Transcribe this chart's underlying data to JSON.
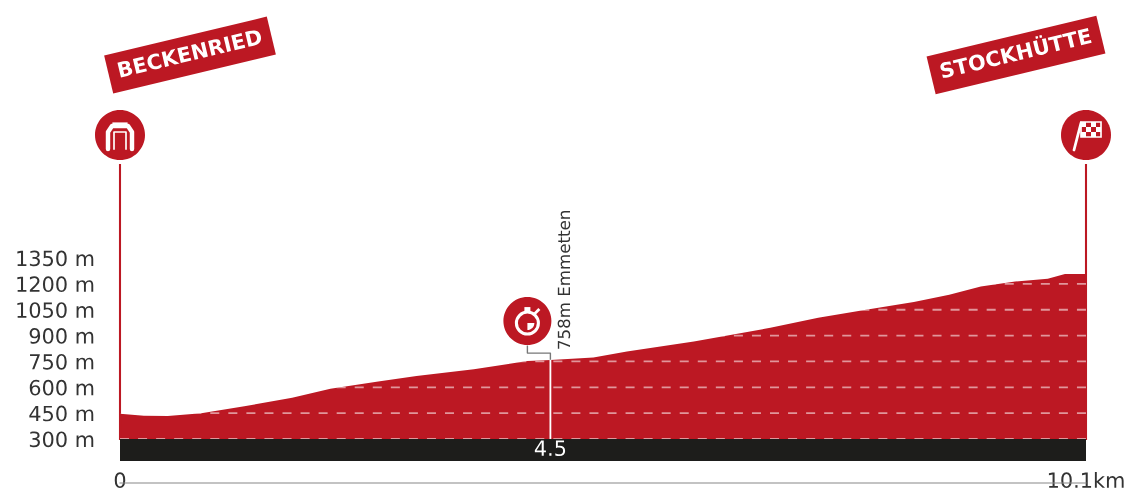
{
  "chart_data": {
    "type": "area",
    "color": "#bc1823",
    "x": [
      0,
      0.25,
      0.5,
      0.85,
      1.3,
      1.8,
      2.2,
      2.7,
      3.1,
      3.7,
      4.26,
      4.5,
      4.95,
      5.3,
      6.0,
      6.8,
      7.3,
      7.8,
      8.3,
      8.67,
      9.0,
      9.36,
      9.7,
      9.88,
      10.1
    ],
    "values": [
      447,
      435,
      434,
      450,
      490,
      540,
      591,
      633,
      666,
      705,
      753,
      758,
      773,
      808,
      866,
      945,
      1003,
      1050,
      1095,
      1137,
      1185,
      1214,
      1230,
      1258,
      1258
    ],
    "xlim": [
      0,
      10.1
    ],
    "xticks": [
      0,
      {
        "value": 10.1,
        "label": "10.1km"
      }
    ],
    "ylim": [
      300,
      1890
    ],
    "yticks": [
      {
        "value": 300,
        "label": "300 m"
      },
      {
        "value": 450,
        "label": "450 m"
      },
      {
        "value": 600,
        "label": "600 m"
      },
      {
        "value": 750,
        "label": "750 m"
      },
      {
        "value": 900,
        "label": "900 m"
      },
      {
        "value": 1050,
        "label": "1050 m"
      },
      {
        "value": 1200,
        "label": "1200 m"
      },
      {
        "value": 1350,
        "label": "1350 m"
      }
    ],
    "grid": "y",
    "ref_lines": [
      {
        "axis": "x",
        "value": 4.5,
        "label": "4.5",
        "color": "#ffffff"
      }
    ],
    "annotations": [
      "BECKENRIED",
      "STOCKHÜTTE",
      {
        "text": "758m Emmetten",
        "x": 4.5,
        "y": 758
      }
    ]
  }
}
